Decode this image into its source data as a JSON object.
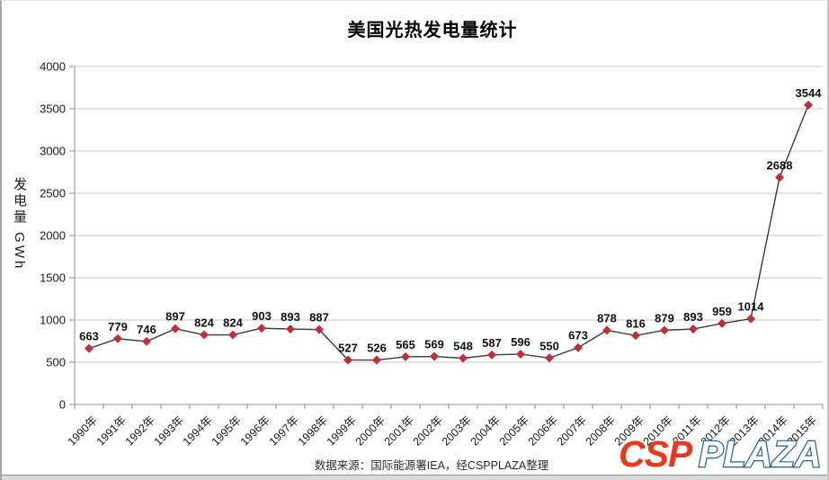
{
  "footer": {
    "text": "数据来源：国际能源署IEA，经CSPPLAZA整理"
  },
  "logo": {
    "csp": "CSP",
    "plaza": "PLAZA",
    "csp_color": "#e7391e",
    "plaza_color": "#1d5ca5"
  },
  "chart_data": {
    "type": "line",
    "title": "美国光热发电量统计",
    "ylabel": "发电量 GWh",
    "xlabel": "",
    "categories": [
      "1990年",
      "1991年",
      "1992年",
      "1993年",
      "1994年",
      "1995年",
      "1996年",
      "1997年",
      "1998年",
      "1999年",
      "2000年",
      "2001年",
      "2002年",
      "2003年",
      "2004年",
      "2005年",
      "2006年",
      "2007年",
      "2008年",
      "2009年",
      "2010年",
      "2011年",
      "2012年",
      "2013年",
      "2014年",
      "2015年"
    ],
    "values": [
      663,
      779,
      746,
      897,
      824,
      824,
      903,
      893,
      887,
      527,
      526,
      565,
      569,
      548,
      587,
      596,
      550,
      673,
      878,
      816,
      879,
      893,
      959,
      1014,
      2688,
      3544
    ],
    "ylim": [
      0,
      4000
    ],
    "yticks": [
      0,
      500,
      1000,
      1500,
      2000,
      2500,
      3000,
      3500,
      4000
    ],
    "grid": "horizontal-only",
    "legend": "none",
    "marker": "diamond",
    "marker_color": "#be2f38",
    "line_color": "#3a3a3a",
    "gridline_color": "#c9c9c9",
    "axis_color": "#8c8c8c",
    "data_labels": "above"
  }
}
